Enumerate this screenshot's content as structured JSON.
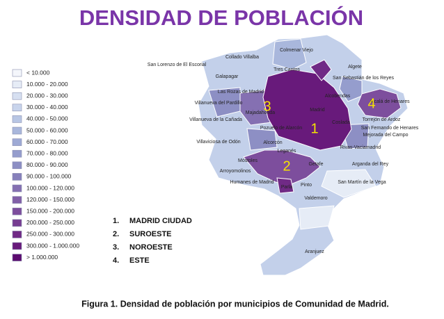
{
  "title": "DENSIDAD DE POBLACIÓN",
  "legend": [
    {
      "label": "< 10.000",
      "color": "#f4f6fb"
    },
    {
      "label": "10.000 - 20.000",
      "color": "#e6ecf6"
    },
    {
      "label": "20.000 - 30.000",
      "color": "#d7e0f1"
    },
    {
      "label": "30.000 - 40.000",
      "color": "#c8d4ec"
    },
    {
      "label": "40.000 - 50.000",
      "color": "#b8c6e4"
    },
    {
      "label": "50.000 - 60.000",
      "color": "#a9b7dc"
    },
    {
      "label": "60.000 - 70.000",
      "color": "#9eaad5"
    },
    {
      "label": "70.000 - 80.000",
      "color": "#959dcd"
    },
    {
      "label": "80.000 - 90.000",
      "color": "#8d8fc4"
    },
    {
      "label": "90.000 - 100.000",
      "color": "#8780bb"
    },
    {
      "label": "100.000 - 120.000",
      "color": "#8570b2"
    },
    {
      "label": "120.000 - 150.000",
      "color": "#8260a8"
    },
    {
      "label": "150.000 - 200.000",
      "color": "#7d4e9d"
    },
    {
      "label": "200.000 - 250.000",
      "color": "#773d92"
    },
    {
      "label": "250.000 - 300.000",
      "color": "#702a86"
    },
    {
      "label": "300.000 - 1.000.000",
      "color": "#681a7b"
    },
    {
      "label": "> 1.000.000",
      "color": "#5c0c70"
    }
  ],
  "zones": [
    {
      "index": "1.",
      "name": "MADRID CIUDAD"
    },
    {
      "index": "2.",
      "name": "SUROESTE"
    },
    {
      "index": "3.",
      "name": "NOROESTE"
    },
    {
      "index": "4.",
      "name": "ESTE"
    }
  ],
  "map_numbers": [
    "1",
    "2",
    "3",
    "4"
  ],
  "municipalities": [
    "Colmenar Viejo",
    "Collado Villalba",
    "San Lorenzo de El Escorial",
    "Galapagar",
    "Tres Cantos",
    "Algete",
    "San Sebastián de los Reyes",
    "Las Rozas de Madrid",
    "Alcobendas",
    "Villanueva del Pardillo",
    "Majadahonda",
    "Madrid",
    "Alcalá de Henares",
    "Villanueva de la Cañada",
    "Pozuelo de Alarcón",
    "Coslada",
    "Torrejón de Ardoz",
    "San Fernando de Henares",
    "Mejorada del Campo",
    "Villaviciosa de Odón",
    "Alcorcón",
    "Rivas-Vaciamadrid",
    "Leganés",
    "Móstoles",
    "Arroyomolinos",
    "Getafe",
    "Arganda del Rey",
    "Humanes de Madrid",
    "Parla",
    "Pinto",
    "San Martín de la Vega",
    "Valdemoro",
    "Aranjuez"
  ],
  "caption": "Figura 1. Densidad de población por municipios de Comunidad de Madrid."
}
